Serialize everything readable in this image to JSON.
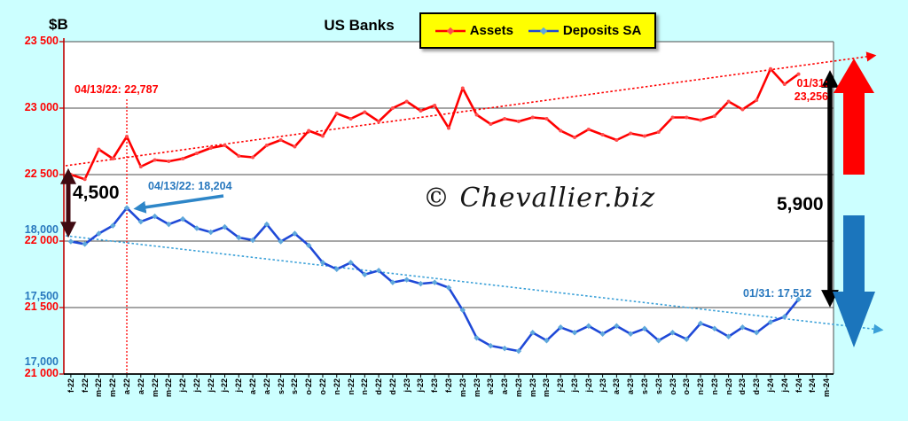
{
  "page": {
    "background": "#CCFFFF",
    "plot_background": "#FFFFFF"
  },
  "header": {
    "title": "US Banks",
    "axis_unit": "$B"
  },
  "legend": {
    "items": [
      {
        "label": "Assets",
        "color": "#FF0000"
      },
      {
        "label": "Deposits SA",
        "color": "#1F49D7"
      }
    ]
  },
  "watermark": "© Chevallier.biz",
  "annotations": {
    "assets_peak": "04/13/22: 22,787",
    "deposits_peak": "04/13/22: 18,204",
    "assets_last_line1": "01/31:",
    "assets_last_line2": "23,256",
    "deposits_last": "01/31: 17,512",
    "gap_start": "4,500",
    "gap_end": "5,900"
  },
  "chart_data": {
    "type": "line",
    "title": "US Banks",
    "grid": true,
    "legend_position": "top",
    "categories": [
      "f-22",
      "f-22",
      "m-22",
      "m-22",
      "a-22",
      "a-22",
      "m-22",
      "m-22",
      "j-22",
      "j-22",
      "j-22",
      "j-22",
      "j-22",
      "a-22",
      "a-22",
      "s-22",
      "s-22",
      "o-22",
      "o-22",
      "n-22",
      "n-22",
      "n-22",
      "d-22",
      "d-22",
      "j-23",
      "j-23",
      "f-23",
      "f-23",
      "m-23",
      "m-23",
      "a-23",
      "a-23",
      "m-23",
      "m-23",
      "m-23",
      "j-23",
      "j-23",
      "j-23",
      "j-23",
      "a-23",
      "a-23",
      "s-23",
      "s-23",
      "o-23",
      "o-23",
      "n-23",
      "n-23",
      "n-23",
      "d-23",
      "d-23",
      "j-24",
      "j-24",
      "f-24",
      "f-24",
      "m-24"
    ],
    "left_axis_assets": {
      "unit": "$B",
      "range": [
        21000,
        23500
      ],
      "ticks": [
        {
          "label": "21 000",
          "value": 21000
        },
        {
          "label": "21 500",
          "value": 21500
        },
        {
          "label": "22 000",
          "value": 22000
        },
        {
          "label": "22 500",
          "value": 22500
        },
        {
          "label": "23 000",
          "value": 23000
        },
        {
          "label": "23 500",
          "value": 23500
        }
      ]
    },
    "left_axis_deposits": {
      "ticks": [
        {
          "label": "17,000",
          "value": 17000
        },
        {
          "label": "17,500",
          "value": 17500
        },
        {
          "label": "18,000",
          "value": 18000
        }
      ]
    },
    "series": [
      {
        "name": "Assets",
        "color": "#FF0000",
        "axis": "assets",
        "values": [
          22500,
          22465,
          22690,
          22620,
          22787,
          22560,
          22610,
          22600,
          22620,
          22660,
          22700,
          22720,
          22640,
          22630,
          22720,
          22760,
          22710,
          22830,
          22790,
          22960,
          22920,
          22970,
          22900,
          23000,
          23050,
          22980,
          23020,
          22850,
          23150,
          22950,
          22880,
          22920,
          22900,
          22930,
          22920,
          22830,
          22780,
          22840,
          22800,
          22760,
          22810,
          22790,
          22820,
          22930,
          22930,
          22910,
          22940,
          23050,
          22990,
          23060,
          23295,
          23180,
          23256,
          null,
          null
        ]
      },
      {
        "name": "Deposits SA",
        "color": "#1F49D7",
        "axis": "deposits",
        "values": [
          17950,
          17930,
          18010,
          18070,
          18204,
          18100,
          18140,
          18080,
          18120,
          18050,
          18020,
          18060,
          17980,
          17960,
          18080,
          17950,
          18010,
          17920,
          17790,
          17740,
          17790,
          17700,
          17730,
          17640,
          17660,
          17630,
          17640,
          17600,
          17430,
          17220,
          17160,
          17140,
          17120,
          17260,
          17200,
          17300,
          17260,
          17310,
          17250,
          17310,
          17250,
          17290,
          17200,
          17260,
          17210,
          17330,
          17290,
          17230,
          17300,
          17260,
          17340,
          17380,
          17512,
          null,
          null
        ]
      }
    ],
    "point_annotations": [
      {
        "series": "Assets",
        "label": "04/13/22: 22,787",
        "value": 22787
      },
      {
        "series": "Deposits SA",
        "label": "04/13/22: 18,204",
        "value": 18204
      },
      {
        "series": "Assets",
        "label": "01/31: 23,256",
        "value": 23256
      },
      {
        "series": "Deposits SA",
        "label": "01/31: 17,512",
        "value": 17512
      }
    ],
    "gap_arrows": [
      {
        "position": "start",
        "label": "4,500"
      },
      {
        "position": "end",
        "label": "5,900"
      }
    ],
    "trendlines": [
      {
        "series": "Assets",
        "style": "dotted",
        "direction": "up",
        "color": "#FF0000"
      },
      {
        "series": "Deposits SA",
        "style": "dotted",
        "direction": "down",
        "color": "#3AA0D8"
      }
    ]
  }
}
